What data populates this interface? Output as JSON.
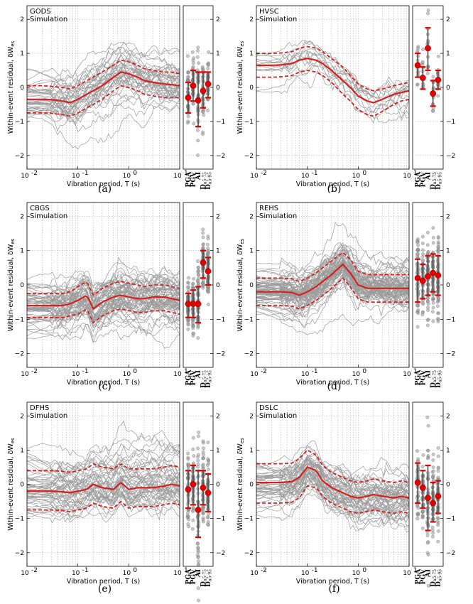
{
  "figure": {
    "x_axis_label": "Vibration period, T (s)",
    "y_axis_label": "Within-event residual, δW",
    "y_axis_label_subscript": "es",
    "x_ticks": [
      "10",
      "10",
      "10",
      "10"
    ],
    "x_tick_exponents": [
      "-2",
      "-1",
      "0",
      "1"
    ],
    "y_ticks": [
      "2",
      "1",
      "0",
      "−1",
      "−2"
    ],
    "intensity_measures": [
      "PGA",
      "PGV",
      "AI",
      "D",
      "D"
    ],
    "intensity_measure_subscripts": [
      "",
      "",
      "",
      "a5-75",
      "a5-95"
    ],
    "colors": {
      "median": "#d62020",
      "records": "#8a8a8a",
      "grid": "#b0b0b0",
      "marker": "#e00000"
    }
  },
  "chart_data": [
    {
      "type": "line",
      "panel": "(a)",
      "title": "GODS",
      "subtitle": "Simulation",
      "xscale": "log",
      "xlim": [
        0.01,
        10
      ],
      "ylim": [
        -2.4,
        2.4
      ],
      "grid": true,
      "x": [
        0.01,
        0.02,
        0.03,
        0.05,
        0.07,
        0.1,
        0.15,
        0.2,
        0.3,
        0.5,
        0.7,
        1,
        1.5,
        2,
        3,
        5,
        7,
        10
      ],
      "median": [
        -0.35,
        -0.35,
        -0.36,
        -0.4,
        -0.45,
        -0.35,
        -0.2,
        -0.1,
        0.05,
        0.3,
        0.45,
        0.4,
        0.3,
        0.2,
        0.15,
        0.1,
        0.08,
        0.05
      ],
      "upper": [
        0.05,
        0.05,
        0.03,
        0.0,
        -0.05,
        0.05,
        0.2,
        0.3,
        0.45,
        0.65,
        0.8,
        0.75,
        0.65,
        0.55,
        0.5,
        0.45,
        0.45,
        0.4
      ],
      "lower": [
        -0.75,
        -0.75,
        -0.76,
        -0.8,
        -0.85,
        -0.75,
        -0.6,
        -0.5,
        -0.35,
        -0.1,
        0.05,
        0.0,
        -0.1,
        -0.2,
        -0.25,
        -0.3,
        -0.3,
        -0.3
      ],
      "record_count": 40,
      "record_spread": 0.45,
      "im_points": [
        {
          "im": "PGA",
          "mean": -0.3,
          "lower": -0.75,
          "upper": 0.15
        },
        {
          "im": "PGV",
          "mean": 0.05,
          "lower": -0.4,
          "upper": 0.5
        },
        {
          "im": "AI",
          "mean": -0.38,
          "lower": -1.15,
          "upper": 0.45
        },
        {
          "im": "Da5-75",
          "mean": -0.1,
          "lower": -0.6,
          "upper": 0.45
        },
        {
          "im": "Da5-95",
          "mean": 0.1,
          "lower": -0.3,
          "upper": 0.45
        }
      ]
    },
    {
      "type": "line",
      "panel": "(b)",
      "title": "HVSC",
      "subtitle": "Simulation",
      "xscale": "log",
      "xlim": [
        0.01,
        10
      ],
      "ylim": [
        -2.4,
        2.4
      ],
      "grid": true,
      "x": [
        0.01,
        0.02,
        0.03,
        0.05,
        0.07,
        0.1,
        0.15,
        0.2,
        0.3,
        0.5,
        0.7,
        1,
        1.5,
        2,
        3,
        5,
        7,
        10
      ],
      "median": [
        0.65,
        0.65,
        0.66,
        0.7,
        0.8,
        0.85,
        0.8,
        0.7,
        0.5,
        0.2,
        0.0,
        -0.25,
        -0.4,
        -0.45,
        -0.35,
        -0.2,
        -0.15,
        -0.1
      ],
      "upper": [
        1.0,
        1.0,
        1.01,
        1.05,
        1.15,
        1.2,
        1.15,
        1.05,
        0.85,
        0.6,
        0.35,
        0.1,
        -0.05,
        -0.1,
        -0.05,
        0.05,
        0.1,
        0.15
      ],
      "lower": [
        0.3,
        0.3,
        0.31,
        0.35,
        0.45,
        0.5,
        0.45,
        0.35,
        0.15,
        -0.2,
        -0.4,
        -0.65,
        -0.8,
        -0.85,
        -0.7,
        -0.5,
        -0.4,
        -0.35
      ],
      "record_count": 14,
      "record_spread": 0.35,
      "im_points": [
        {
          "im": "PGA",
          "mean": 0.65,
          "lower": 0.3,
          "upper": 1.0
        },
        {
          "im": "PGV",
          "mean": 0.28,
          "lower": -0.05,
          "upper": 0.6
        },
        {
          "im": "AI",
          "mean": 1.15,
          "lower": 0.5,
          "upper": 1.75
        },
        {
          "im": "Da5-75",
          "mean": -0.18,
          "lower": -0.55,
          "upper": 0.2
        },
        {
          "im": "Da5-95",
          "mean": 0.22,
          "lower": -0.05,
          "upper": 0.5
        }
      ]
    },
    {
      "type": "line",
      "panel": "(c)",
      "title": "CBGS",
      "subtitle": "Simulation",
      "xscale": "log",
      "xlim": [
        0.01,
        10
      ],
      "ylim": [
        -2.4,
        2.4
      ],
      "grid": true,
      "x": [
        0.01,
        0.02,
        0.03,
        0.05,
        0.07,
        0.1,
        0.15,
        0.2,
        0.3,
        0.5,
        0.7,
        1,
        1.5,
        2,
        3,
        5,
        7,
        10
      ],
      "median": [
        -0.6,
        -0.6,
        -0.6,
        -0.6,
        -0.55,
        -0.45,
        -0.3,
        -0.7,
        -0.5,
        -0.35,
        -0.3,
        -0.35,
        -0.4,
        -0.4,
        -0.35,
        -0.35,
        -0.4,
        -0.45
      ],
      "upper": [
        -0.25,
        -0.25,
        -0.25,
        -0.25,
        -0.2,
        -0.05,
        0.1,
        -0.3,
        -0.1,
        0.05,
        0.1,
        0.05,
        0.0,
        -0.05,
        0.0,
        0.0,
        -0.05,
        -0.1
      ],
      "lower": [
        -0.95,
        -0.95,
        -0.95,
        -0.95,
        -0.9,
        -0.85,
        -0.7,
        -1.1,
        -0.9,
        -0.75,
        -0.7,
        -0.75,
        -0.8,
        -0.8,
        -0.75,
        -0.75,
        -0.8,
        -0.85
      ],
      "record_count": 60,
      "record_spread": 0.4,
      "im_points": [
        {
          "im": "PGA",
          "mean": -0.55,
          "lower": -0.95,
          "upper": -0.25
        },
        {
          "im": "PGV",
          "mean": -0.55,
          "lower": -0.95,
          "upper": -0.15
        },
        {
          "im": "AI",
          "mean": -0.55,
          "lower": -1.1,
          "upper": -0.05
        },
        {
          "im": "Da5-75",
          "mean": 0.65,
          "lower": 0.2,
          "upper": 1.0
        },
        {
          "im": "Da5-95",
          "mean": 0.4,
          "lower": 0.0,
          "upper": 0.8
        }
      ]
    },
    {
      "type": "line",
      "panel": "(d)",
      "title": "REHS",
      "subtitle": "Simulation",
      "xscale": "log",
      "xlim": [
        0.01,
        10
      ],
      "ylim": [
        -2.4,
        2.4
      ],
      "grid": true,
      "x": [
        0.01,
        0.02,
        0.03,
        0.05,
        0.07,
        0.1,
        0.15,
        0.2,
        0.3,
        0.5,
        0.7,
        1,
        1.5,
        2,
        3,
        5,
        7,
        10
      ],
      "median": [
        -0.2,
        -0.2,
        -0.2,
        -0.22,
        -0.3,
        -0.2,
        -0.05,
        0.1,
        0.3,
        0.6,
        0.35,
        0.0,
        -0.1,
        -0.1,
        -0.1,
        -0.1,
        -0.1,
        -0.1
      ],
      "upper": [
        0.2,
        0.2,
        0.2,
        0.18,
        0.1,
        0.2,
        0.35,
        0.5,
        0.7,
        0.95,
        0.75,
        0.4,
        0.3,
        0.3,
        0.3,
        0.3,
        0.3,
        0.3
      ],
      "lower": [
        -0.6,
        -0.6,
        -0.6,
        -0.62,
        -0.7,
        -0.6,
        -0.45,
        -0.3,
        -0.1,
        0.2,
        -0.05,
        -0.4,
        -0.5,
        -0.5,
        -0.5,
        -0.5,
        -0.5,
        -0.5
      ],
      "record_count": 70,
      "record_spread": 0.4,
      "im_points": [
        {
          "im": "PGA",
          "mean": 0.2,
          "lower": -0.5,
          "upper": 0.75
        },
        {
          "im": "PGV",
          "mean": 0.12,
          "lower": -0.4,
          "upper": 0.6
        },
        {
          "im": "AI",
          "mean": 0.25,
          "lower": -0.3,
          "upper": 0.85
        },
        {
          "im": "Da5-75",
          "mean": 0.35,
          "lower": -0.2,
          "upper": 0.9
        },
        {
          "im": "Da5-95",
          "mean": 0.28,
          "lower": -0.3,
          "upper": 0.85
        }
      ]
    },
    {
      "type": "line",
      "panel": "(e)",
      "title": "DFHS",
      "subtitle": "Simulation",
      "xscale": "log",
      "xlim": [
        0.01,
        10
      ],
      "ylim": [
        -2.4,
        2.4
      ],
      "grid": true,
      "x": [
        0.01,
        0.02,
        0.03,
        0.05,
        0.07,
        0.1,
        0.15,
        0.2,
        0.3,
        0.5,
        0.7,
        1,
        1.5,
        2,
        3,
        5,
        7,
        10
      ],
      "median": [
        -0.2,
        -0.2,
        -0.2,
        -0.22,
        -0.25,
        -0.2,
        -0.15,
        0.0,
        -0.1,
        -0.15,
        0.05,
        -0.15,
        -0.1,
        -0.1,
        -0.1,
        -0.05,
        0.0,
        -0.05
      ],
      "upper": [
        0.4,
        0.4,
        0.4,
        0.38,
        0.35,
        0.4,
        0.45,
        0.6,
        0.5,
        0.45,
        0.6,
        0.45,
        0.45,
        0.45,
        0.45,
        0.5,
        0.55,
        0.5
      ],
      "lower": [
        -0.75,
        -0.75,
        -0.75,
        -0.77,
        -0.8,
        -0.75,
        -0.7,
        -0.55,
        -0.65,
        -0.7,
        -0.5,
        -0.7,
        -0.65,
        -0.65,
        -0.65,
        -0.6,
        -0.55,
        -0.6
      ],
      "record_count": 50,
      "record_spread": 0.55,
      "im_points": [
        {
          "im": "PGA",
          "mean": -0.15,
          "lower": -0.7,
          "upper": 0.4
        },
        {
          "im": "PGV",
          "mean": 0.0,
          "lower": -0.6,
          "upper": 0.55
        },
        {
          "im": "AI",
          "mean": -0.75,
          "lower": -1.55,
          "upper": 0.4
        },
        {
          "im": "Da5-75",
          "mean": -0.1,
          "lower": -0.6,
          "upper": 0.4
        },
        {
          "im": "Da5-95",
          "mean": -0.25,
          "lower": -0.8,
          "upper": 0.3
        }
      ]
    },
    {
      "type": "line",
      "panel": "(f)",
      "title": "DSLC",
      "subtitle": "Simulation",
      "xscale": "log",
      "xlim": [
        0.01,
        10
      ],
      "ylim": [
        -2.4,
        2.4
      ],
      "grid": true,
      "x": [
        0.01,
        0.02,
        0.03,
        0.05,
        0.07,
        0.1,
        0.15,
        0.2,
        0.3,
        0.5,
        0.7,
        1,
        1.5,
        2,
        3,
        5,
        7,
        10
      ],
      "median": [
        0.05,
        0.05,
        0.05,
        0.08,
        0.2,
        0.5,
        0.4,
        0.1,
        -0.1,
        -0.25,
        -0.35,
        -0.4,
        -0.35,
        -0.3,
        -0.35,
        -0.4,
        -0.35,
        -0.4
      ],
      "upper": [
        0.6,
        0.6,
        0.6,
        0.62,
        0.75,
        1.0,
        0.85,
        0.55,
        0.35,
        0.2,
        0.1,
        0.05,
        0.1,
        0.15,
        0.1,
        0.05,
        0.1,
        0.05
      ],
      "lower": [
        -0.55,
        -0.55,
        -0.55,
        -0.52,
        -0.4,
        -0.05,
        -0.1,
        -0.35,
        -0.55,
        -0.7,
        -0.8,
        -0.85,
        -0.8,
        -0.75,
        -0.8,
        -0.85,
        -0.8,
        -0.85
      ],
      "record_count": 50,
      "record_spread": 0.5,
      "im_points": [
        {
          "im": "PGA",
          "mean": 0.05,
          "lower": -0.55,
          "upper": 0.62
        },
        {
          "im": "PGV",
          "mean": -0.1,
          "lower": -0.7,
          "upper": 0.4
        },
        {
          "im": "AI",
          "mean": -0.4,
          "lower": -1.35,
          "upper": 0.55
        },
        {
          "im": "Da5-75",
          "mean": -0.55,
          "lower": -1.1,
          "upper": 0.05
        },
        {
          "im": "Da5-95",
          "mean": -0.35,
          "lower": -0.85,
          "upper": 0.1
        }
      ]
    }
  ]
}
